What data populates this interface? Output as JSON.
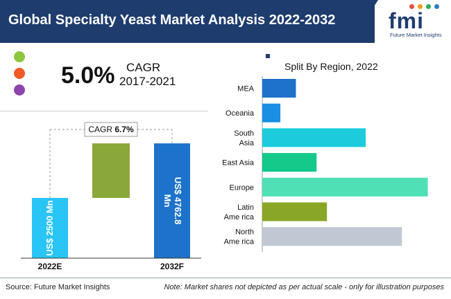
{
  "header": {
    "title": "Global Specialty Yeast Market Analysis 2022-2032",
    "logo_text": "fmi",
    "logo_subtitle": "Future Market Insights"
  },
  "legend_dots": {
    "colors": [
      "#8dc63f",
      "#f15a24",
      "#8e44ad"
    ]
  },
  "cagr_summary": {
    "value": "5.0%",
    "label": "CAGR",
    "period": "2017-2021"
  },
  "colors": {
    "brand": "#1e3c6e"
  },
  "chart_data": [
    {
      "type": "bar",
      "title": "",
      "cagr_label": "CAGR",
      "cagr_value": "6.7%",
      "categories": [
        "2022E",
        "2032F"
      ],
      "values": [
        2500,
        4762.8
      ],
      "value_labels": [
        "US$ 2500 Mn",
        "US$ 4762.8 Mn"
      ],
      "colors": [
        "#29c5f6",
        "#1d72c9"
      ],
      "growth_color": "#8aa73a",
      "ylim": [
        0,
        5600
      ]
    },
    {
      "type": "bar",
      "orientation": "horizontal",
      "title": "Split By Region, 2022",
      "categories": [
        "MEA",
        "Oceania",
        "South Asia",
        "East Asia",
        "Europe",
        "Latin America",
        "North America"
      ],
      "category_lines": [
        [
          "MEA"
        ],
        [
          "Oceania"
        ],
        [
          "South",
          "Asia"
        ],
        [
          "East Asia"
        ],
        [
          "Europe"
        ],
        [
          "Latin",
          "Ame rica"
        ],
        [
          "North",
          "Ame rica"
        ]
      ],
      "values": [
        13,
        7,
        40,
        21,
        64,
        25,
        54
      ],
      "colors": [
        "#1d72c9",
        "#1a8fe3",
        "#1ccbdc",
        "#14c98a",
        "#4fe0b5",
        "#8aa626",
        "#c1c8d3"
      ],
      "xlim": [
        0,
        66
      ]
    }
  ],
  "footer": {
    "source": "Source: Future Market Insights",
    "note": "Note: Market shares not depicted as per actual scale - only for illustration purposes"
  }
}
